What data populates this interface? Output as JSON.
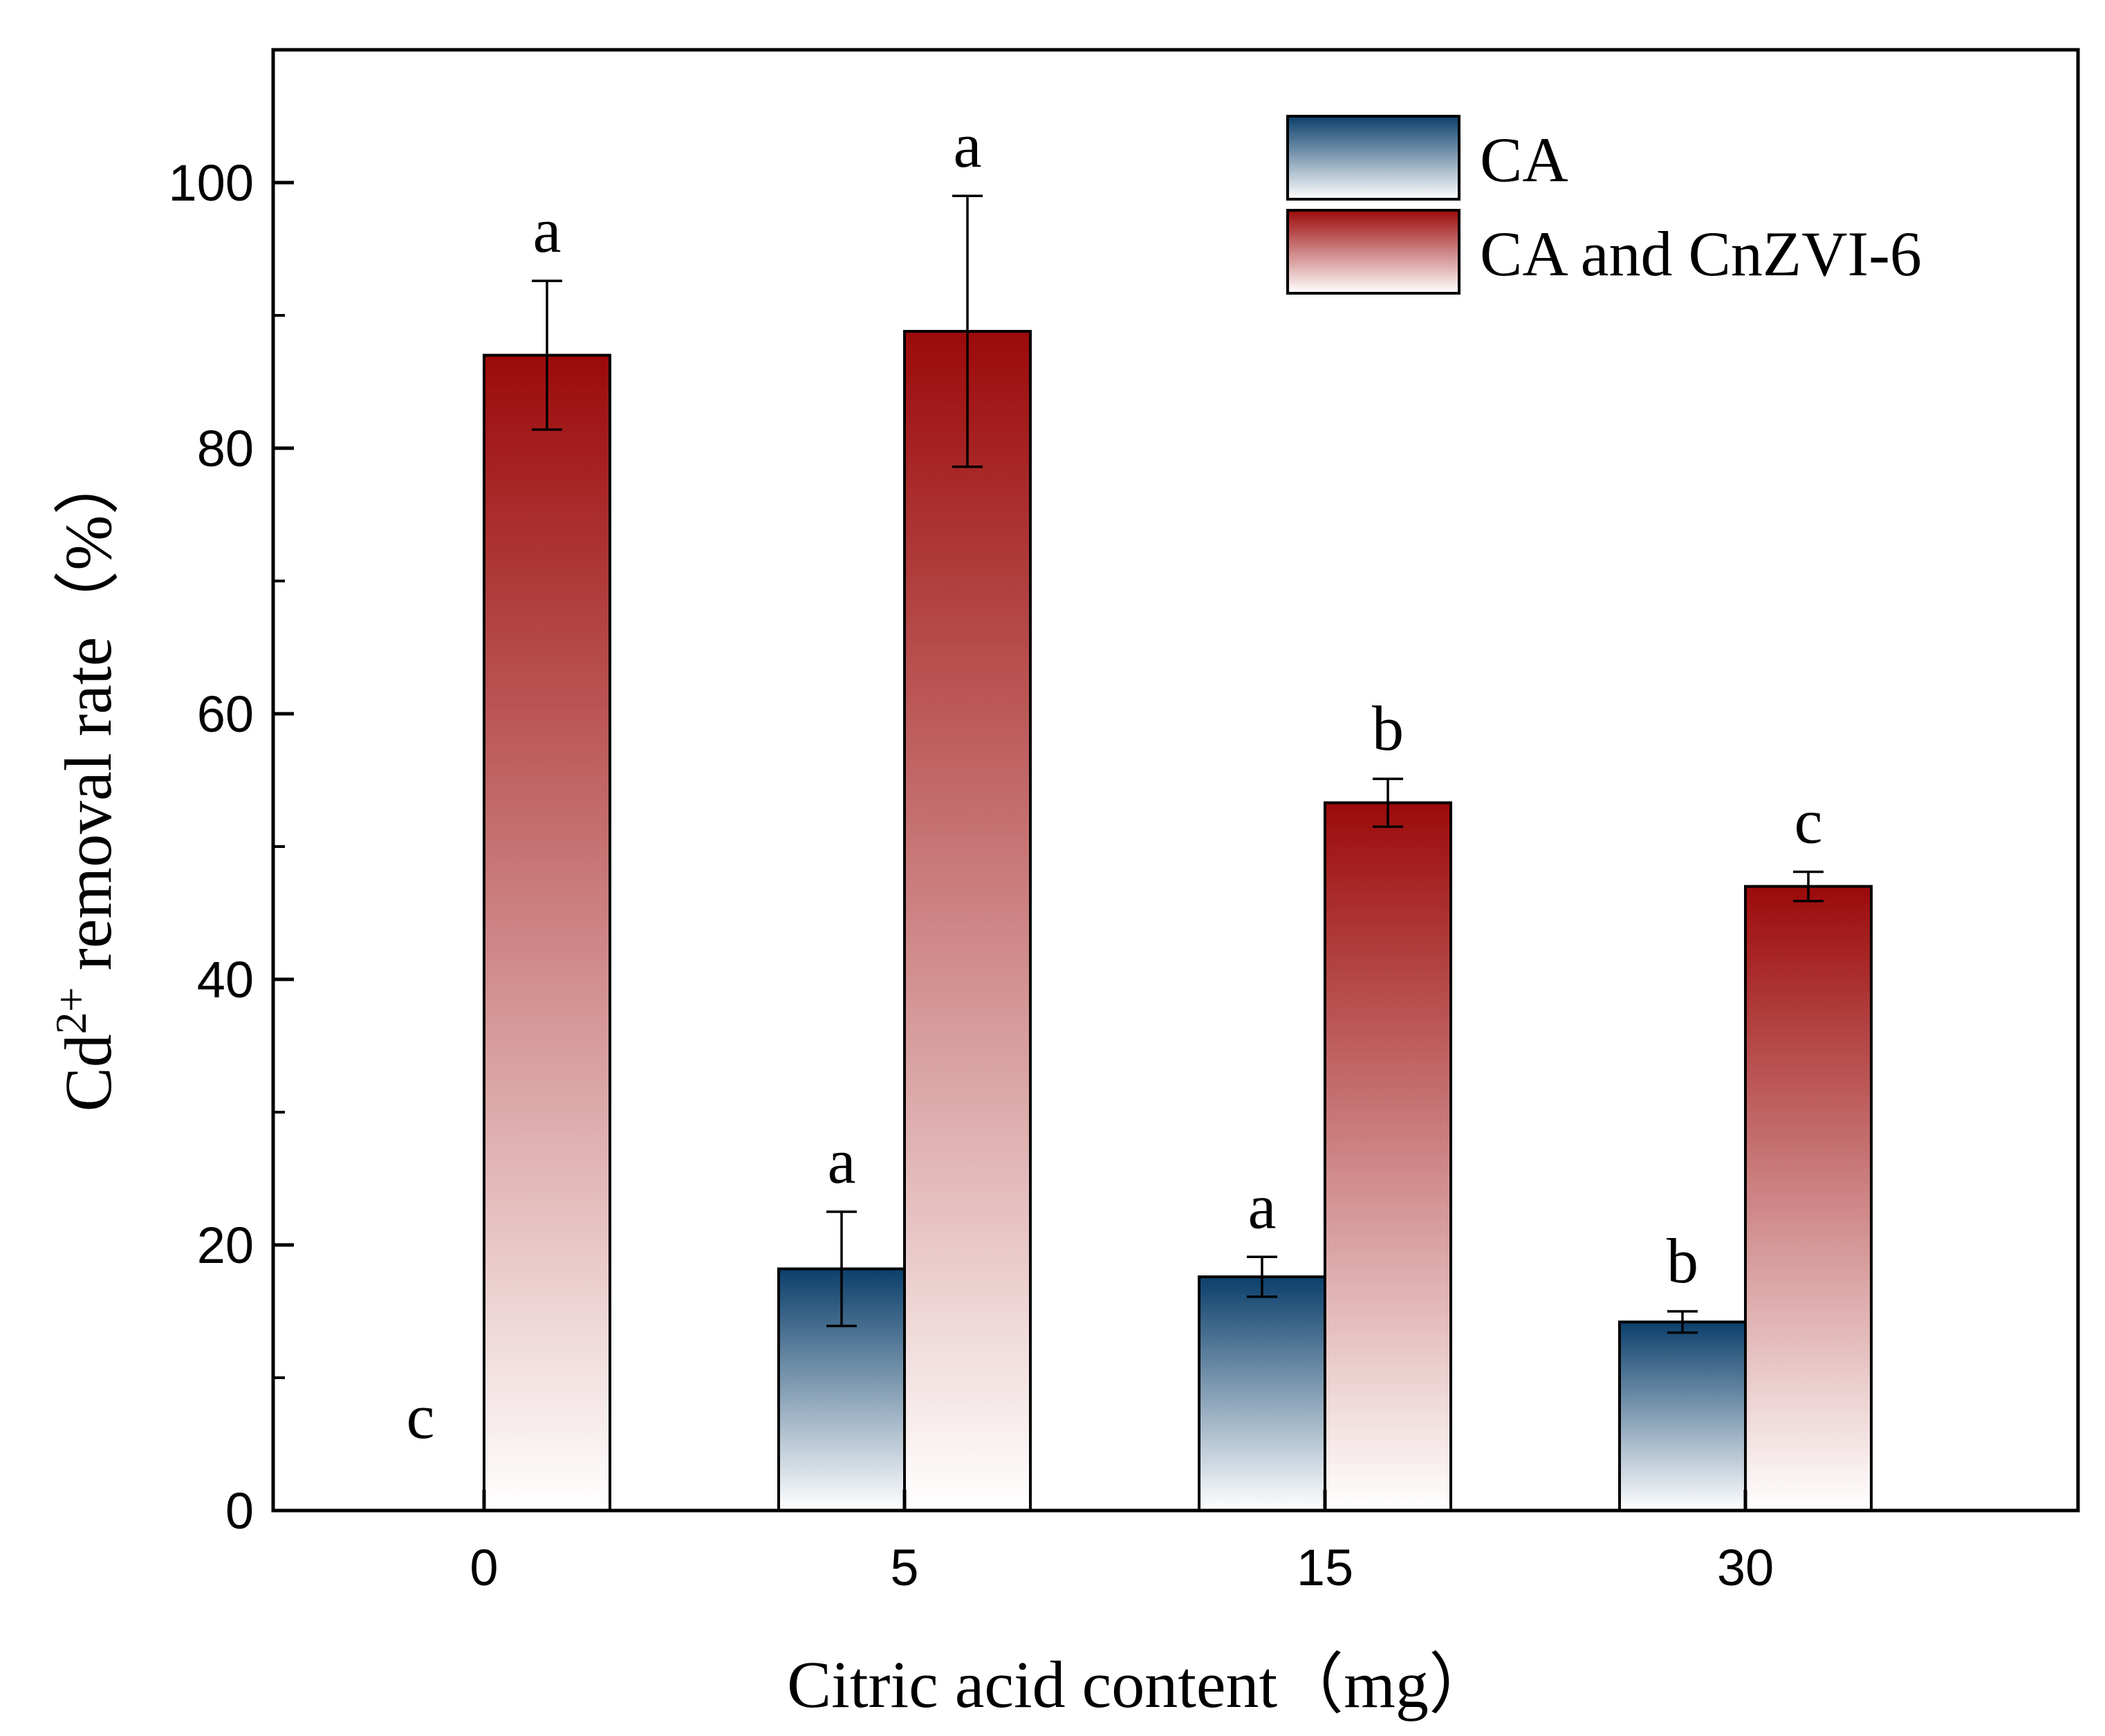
{
  "chart_data": {
    "type": "bar",
    "xlabel": "Citric acid content（mg）",
    "ylabel": {
      "prefix": "Cd",
      "superscript": "2+",
      "suffix": " removal rate（%）"
    },
    "categories": [
      "0",
      "5",
      "15",
      "30"
    ],
    "ylim": [
      0,
      110
    ],
    "yticks": [
      0,
      20,
      40,
      60,
      80,
      100
    ],
    "grid": false,
    "legend_position": "top-right",
    "series": [
      {
        "name": "CA",
        "color": "#0b3f6b",
        "values": [
          0,
          18.2,
          17.6,
          14.2
        ],
        "errors": [
          0,
          4.3,
          1.5,
          0.8
        ],
        "significance": [
          "c",
          "a",
          "a",
          "b"
        ]
      },
      {
        "name": "CA and CnZVI-6",
        "color": "#9c0a0a",
        "values": [
          87.0,
          88.8,
          53.3,
          47.0
        ],
        "errors": [
          5.6,
          10.2,
          1.8,
          1.1
        ],
        "significance": [
          "a",
          "a",
          "b",
          "c"
        ]
      }
    ]
  }
}
